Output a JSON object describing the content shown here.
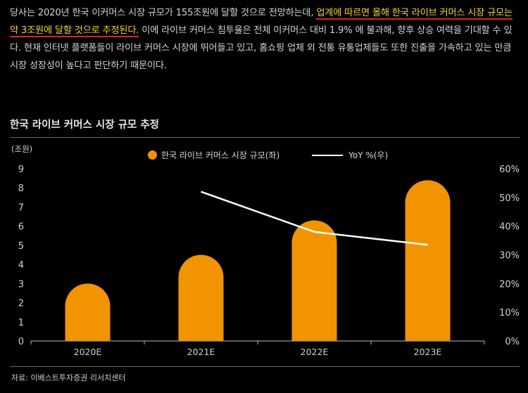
{
  "paragraph": {
    "part1": "당사는 2020년 한국 이커머스 시장 규모가 155조원에 달할 것으로 전망하는데, ",
    "highlight": "업계에 따르면 올해 한국 라이브 커머스 시장 규모는 약 3조원에 달할 것으로 추정된다.",
    "part2": " 이에 라이브 커머스 침투율은 전체 이커머스 대비 1.9% 에 불과해, 향후 상승 여력을 기대할 수 있다. 현재 인터넷 플랫폼들이 라이브 커머스 시장에 뛰어들고 있고, 홈쇼핑 업체 외 전통 유통업체들도 또한 진출을 가속하고 있는 만큼 시장 성장성이 높다고 판단하기 때문이다."
  },
  "source": "자료: 이베스트투자증권 리서치센터",
  "colors": {
    "bar": "#f29400",
    "line": "#ffffff",
    "highlight": "#f2d23b",
    "underline": "#e0202a"
  },
  "chart_data": {
    "type": "bar",
    "title": "한국 라이브 커머스 시장 규모 추정",
    "y_unit": "(조원)",
    "categories": [
      "2020E",
      "2021E",
      "2022E",
      "2023E"
    ],
    "series": [
      {
        "name": "한국 라이브 커머스 시장 규모(좌)",
        "type": "bar",
        "axis": "left",
        "values": [
          3.0,
          4.5,
          6.3,
          8.4
        ]
      },
      {
        "name": "YoY %(우)",
        "type": "line",
        "axis": "right",
        "values": [
          null,
          52,
          38,
          33.5
        ]
      }
    ],
    "ylim_left": [
      0,
      9
    ],
    "yticks_left": [
      "0",
      "1",
      "2",
      "3",
      "4",
      "5",
      "6",
      "7",
      "8",
      "9"
    ],
    "ylim_right": [
      0,
      60
    ],
    "yticks_right": [
      "0%",
      "10%",
      "20%",
      "30%",
      "40%",
      "50%",
      "60%"
    ],
    "grid": false,
    "legend_position": "top"
  }
}
